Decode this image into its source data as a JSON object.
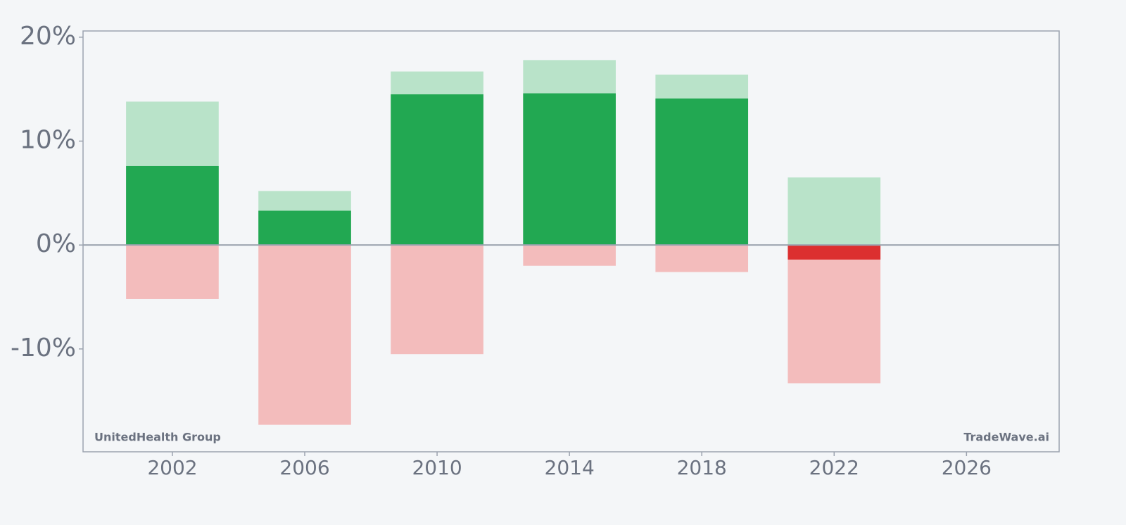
{
  "chart_data": {
    "type": "bar",
    "x": [
      2002,
      2006,
      2010,
      2014,
      2018,
      2022
    ],
    "series": [
      {
        "color": "#b9e3c9",
        "values": [
          13.8,
          5.2,
          16.7,
          17.8,
          16.4,
          6.5
        ]
      },
      {
        "color": "#f3bcbc",
        "values": [
          -5.2,
          -17.3,
          -10.5,
          -2.0,
          -2.6,
          -13.3
        ]
      },
      {
        "color": "#22a852",
        "negative_color": "#dc2f2f",
        "values": [
          7.6,
          3.3,
          14.5,
          14.6,
          14.1,
          -1.4
        ]
      }
    ],
    "xlim": [
      1999.3,
      2028.8
    ],
    "xticks": [
      2002,
      2006,
      2010,
      2014,
      2018,
      2022,
      2026
    ],
    "ylim": [
      -19.9,
      20.6
    ],
    "yticks": [
      {
        "value": -10,
        "label": "-10%"
      },
      {
        "value": 0,
        "label": "0%"
      },
      {
        "value": 10,
        "label": "10%"
      },
      {
        "value": 20,
        "label": "20%"
      }
    ],
    "annotations": [
      "UnitedHealth Group",
      "TradeWave.ai"
    ]
  }
}
